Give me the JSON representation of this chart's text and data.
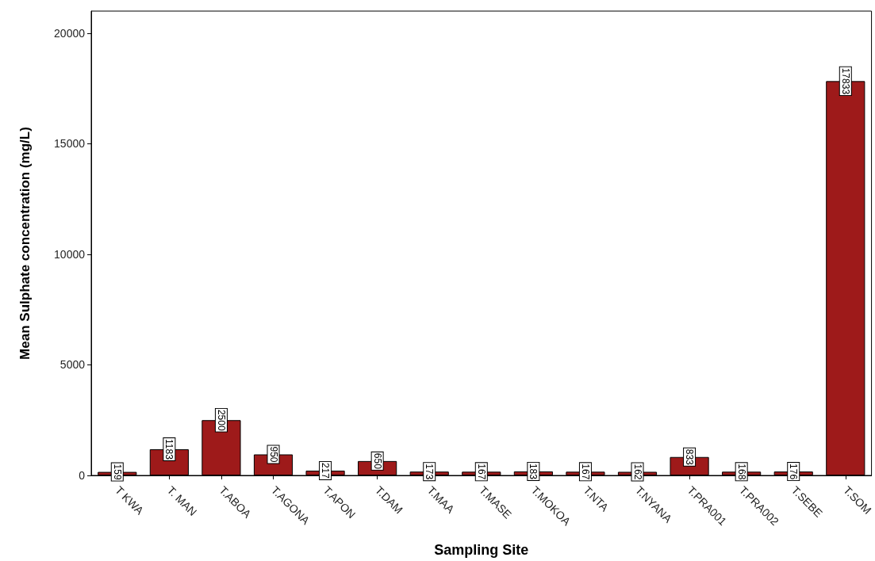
{
  "chart_data": {
    "type": "bar",
    "xlabel": "Sampling Site",
    "ylabel": "Mean Sulphate concentration (mg/L)",
    "categories": [
      "T KWA",
      "T. MAN",
      "T.ABOA",
      "T.AGONA",
      "T.APON",
      "T.DAM",
      "T.MAA",
      "T.MASE",
      "T.MOKOA",
      "T.NTA",
      "T.NYANA",
      "T.PRA001",
      "T.PRA002",
      "T.SEBE",
      "T.SOM"
    ],
    "values": [
      159,
      1183,
      2500,
      950,
      217,
      650,
      173,
      167,
      183,
      167,
      162,
      833,
      168,
      176,
      17833
    ],
    "color": "#9e1a1a",
    "data_labels": true,
    "grid": false,
    "ylim": [
      0,
      21000
    ],
    "yticks": [
      0,
      5000,
      10000,
      15000,
      20000
    ]
  }
}
